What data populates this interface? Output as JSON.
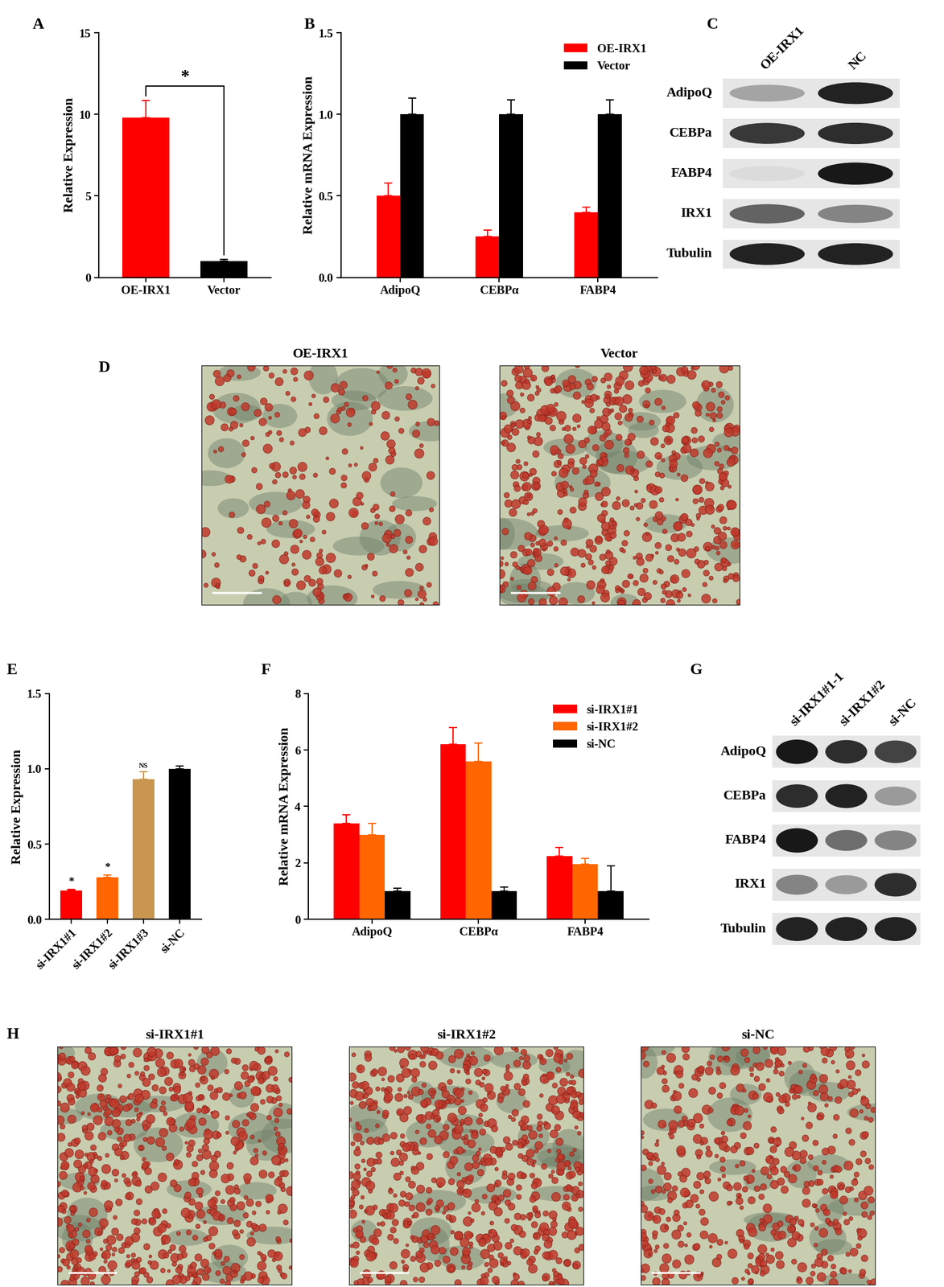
{
  "chart_data": [
    {
      "panel": "A",
      "type": "bar",
      "ylabel": "Relative Expression",
      "categories": [
        "OE-IRX1",
        "Vector"
      ],
      "values": [
        9.8,
        1.0
      ],
      "errors": [
        1.05,
        0.1
      ],
      "colors": [
        "#ff0000",
        "#000000"
      ],
      "ylim": [
        0,
        15
      ],
      "yticks": [
        0,
        5,
        10,
        15
      ],
      "significance": "*"
    },
    {
      "panel": "B",
      "type": "bar",
      "ylabel": "Relative mRNA Expression",
      "categories": [
        "AdipoQ",
        "CEBPα",
        "FABP4"
      ],
      "series": [
        {
          "name": "OE-IRX1",
          "color": "#ff0000",
          "values": [
            0.5,
            0.25,
            0.4
          ],
          "errors": [
            0.08,
            0.04,
            0.03
          ]
        },
        {
          "name": "Vector",
          "color": "#000000",
          "values": [
            1.0,
            1.0,
            1.0
          ],
          "errors": [
            0.1,
            0.09,
            0.09
          ]
        }
      ],
      "ylim": [
        0,
        1.5
      ],
      "yticks": [
        {
          "value": 0,
          "label": "0.0"
        },
        {
          "value": 0.5,
          "label": "0.5"
        },
        {
          "value": 1,
          "label": "1.0"
        },
        {
          "value": 1.5,
          "label": "1.5"
        }
      ],
      "legend": "upper right"
    },
    {
      "panel": "E",
      "type": "bar",
      "ylabel": "Relative Expression",
      "categories": [
        "si-IRX1#1",
        "si-IRX1#2",
        "si-IRX1#3",
        "si-NC"
      ],
      "values": [
        0.19,
        0.28,
        0.93,
        1.0
      ],
      "errors": [
        0.01,
        0.015,
        0.05,
        0.02
      ],
      "colors": [
        "#ff0000",
        "#ff6600",
        "#c8964f",
        "#000000"
      ],
      "ylim": [
        0,
        1.5
      ],
      "yticks": [
        {
          "value": 0,
          "label": "0.0"
        },
        {
          "value": 0.5,
          "label": "0.5"
        },
        {
          "value": 1,
          "label": "1.0"
        },
        {
          "value": 1.5,
          "label": "1.5"
        }
      ],
      "significance": [
        "*",
        "*",
        "NS",
        null
      ]
    },
    {
      "panel": "F",
      "type": "bar",
      "ylabel": "Relative mRNA Expression",
      "categories": [
        "AdipoQ",
        "CEBPα",
        "FABP4"
      ],
      "series": [
        {
          "name": "si-IRX1#1",
          "color": "#ff0000",
          "values": [
            3.4,
            6.2,
            2.25
          ],
          "errors": [
            0.3,
            0.6,
            0.3
          ]
        },
        {
          "name": "si-IRX1#2",
          "color": "#ff6600",
          "values": [
            3.0,
            5.6,
            1.95
          ],
          "errors": [
            0.4,
            0.65,
            0.2
          ]
        },
        {
          "name": "si-NC",
          "color": "#000000",
          "values": [
            1.0,
            1.0,
            1.0
          ],
          "errors": [
            0.1,
            0.15,
            0.9
          ]
        }
      ],
      "ylim": [
        0,
        8
      ],
      "yticks": [
        0,
        2,
        4,
        6,
        8
      ],
      "legend": "upper right"
    }
  ],
  "blots": [
    {
      "panel": "C",
      "lanes": [
        "OE-IRX1",
        "NC"
      ],
      "rows": [
        {
          "name": "AdipoQ",
          "bands": [
            0.3,
            0.9
          ]
        },
        {
          "name": "CEBPa",
          "bands": [
            0.8,
            0.85
          ]
        },
        {
          "name": "FABP4",
          "bands": [
            0.05,
            0.95
          ]
        },
        {
          "name": "IRX1",
          "bands": [
            0.6,
            0.45
          ]
        },
        {
          "name": "Tubulin",
          "bands": [
            0.9,
            0.9
          ]
        }
      ]
    },
    {
      "panel": "G",
      "lanes": [
        "si-IRX1#1-1",
        "si-IRX1#2",
        "si-NC"
      ],
      "rows": [
        {
          "name": "AdipoQ",
          "bands": [
            0.95,
            0.85,
            0.75
          ]
        },
        {
          "name": "CEBPa",
          "bands": [
            0.85,
            0.9,
            0.35
          ]
        },
        {
          "name": "FABP4",
          "bands": [
            0.95,
            0.55,
            0.45
          ]
        },
        {
          "name": "IRX1",
          "bands": [
            0.45,
            0.35,
            0.85
          ]
        },
        {
          "name": "Tubulin",
          "bands": [
            0.9,
            0.9,
            0.9
          ]
        }
      ]
    }
  ],
  "images": [
    {
      "panel": "D",
      "items": [
        {
          "label": "OE-IRX1",
          "stain": 0.35
        },
        {
          "label": "Vector",
          "stain": 0.8
        }
      ]
    },
    {
      "panel": "H",
      "items": [
        {
          "label": "si-IRX1#1",
          "stain": 0.9
        },
        {
          "label": "si-IRX1#2",
          "stain": 0.95
        },
        {
          "label": "si-NC",
          "stain": 0.7
        }
      ]
    }
  ]
}
